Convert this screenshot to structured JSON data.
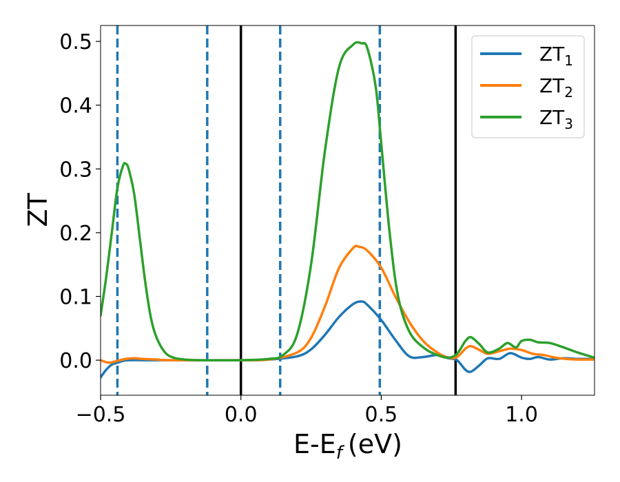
{
  "chart_data": {
    "type": "line",
    "xlabel": "E-E",
    "xlabel_sub": "f",
    "xlabel_unit": "(eV)",
    "ylabel": "ZT",
    "xlim": [
      -0.5,
      1.26
    ],
    "ylim": [
      -0.055,
      0.525
    ],
    "xticks": [
      -0.5,
      0.0,
      0.5,
      1.0
    ],
    "xtick_labels": [
      "−0.5",
      "0.0",
      "0.5",
      "1.0"
    ],
    "yticks": [
      0.0,
      0.1,
      0.2,
      0.3,
      0.4,
      0.5
    ],
    "ytick_labels": [
      "0.0",
      "0.1",
      "0.2",
      "0.3",
      "0.4",
      "0.5"
    ],
    "grid": false,
    "legend_position": "top-right",
    "vlines_solid": [
      0.0,
      0.765
    ],
    "vlines_dashed": [
      -0.44,
      -0.12,
      0.14,
      0.495
    ],
    "colors": {
      "ZT1": "#1f77b4",
      "ZT2": "#ff7f0e",
      "ZT3": "#2ca02c",
      "solid": "#000000",
      "dashed": "#1f77b4"
    },
    "series": [
      {
        "name": "ZT",
        "sub": "1",
        "color": "#1f77b4",
        "x": [
          -0.5,
          -0.48,
          -0.46,
          -0.44,
          -0.42,
          -0.4,
          -0.35,
          -0.3,
          0.0,
          0.1,
          0.2,
          0.25,
          0.3,
          0.35,
          0.4,
          0.43,
          0.45,
          0.5,
          0.55,
          0.6,
          0.65,
          0.7,
          0.74,
          0.77,
          0.8,
          0.82,
          0.85,
          0.88,
          0.92,
          0.96,
          1.0,
          1.03,
          1.06,
          1.1,
          1.15,
          1.2,
          1.26
        ],
        "y": [
          -0.027,
          -0.015,
          -0.007,
          -0.004,
          -0.001,
          0.0,
          0.0,
          0.0,
          0.0,
          0.001,
          0.006,
          0.017,
          0.04,
          0.068,
          0.088,
          0.092,
          0.087,
          0.063,
          0.032,
          0.006,
          0.005,
          0.008,
          0.003,
          0.0,
          -0.015,
          -0.018,
          -0.008,
          0.003,
          0.002,
          0.011,
          0.004,
          0.002,
          0.005,
          0.001,
          0.003,
          0.002,
          0.002
        ]
      },
      {
        "name": "ZT",
        "sub": "2",
        "color": "#ff7f0e",
        "x": [
          -0.5,
          -0.47,
          -0.44,
          -0.41,
          -0.38,
          -0.35,
          -0.3,
          -0.25,
          0.0,
          0.1,
          0.2,
          0.25,
          0.3,
          0.35,
          0.4,
          0.42,
          0.45,
          0.5,
          0.55,
          0.6,
          0.65,
          0.7,
          0.74,
          0.77,
          0.8,
          0.82,
          0.85,
          0.88,
          0.92,
          0.96,
          1.0,
          1.04,
          1.08,
          1.12,
          1.16,
          1.2,
          1.26
        ],
        "y": [
          0.0,
          -0.004,
          -0.001,
          0.002,
          0.003,
          0.002,
          0.001,
          0.0,
          0.0,
          0.001,
          0.012,
          0.035,
          0.085,
          0.145,
          0.176,
          0.178,
          0.172,
          0.145,
          0.1,
          0.06,
          0.03,
          0.012,
          0.004,
          0.005,
          0.018,
          0.022,
          0.016,
          0.01,
          0.014,
          0.018,
          0.016,
          0.01,
          0.008,
          0.004,
          0.002,
          0.001,
          0.001
        ]
      },
      {
        "name": "ZT",
        "sub": "3",
        "color": "#2ca02c",
        "x": [
          -0.5,
          -0.48,
          -0.46,
          -0.44,
          -0.42,
          -0.41,
          -0.4,
          -0.38,
          -0.36,
          -0.34,
          -0.32,
          -0.3,
          -0.27,
          -0.24,
          -0.2,
          -0.15,
          0.0,
          0.1,
          0.15,
          0.2,
          0.25,
          0.3,
          0.35,
          0.4,
          0.43,
          0.45,
          0.48,
          0.5,
          0.53,
          0.56,
          0.6,
          0.65,
          0.7,
          0.74,
          0.77,
          0.8,
          0.82,
          0.85,
          0.88,
          0.92,
          0.95,
          0.98,
          1.0,
          1.03,
          1.06,
          1.1,
          1.15,
          1.2,
          1.26
        ],
        "y": [
          0.07,
          0.13,
          0.2,
          0.27,
          0.305,
          0.308,
          0.3,
          0.26,
          0.19,
          0.12,
          0.065,
          0.035,
          0.012,
          0.004,
          0.001,
          0.0,
          0.0,
          0.002,
          0.008,
          0.04,
          0.15,
          0.33,
          0.46,
          0.495,
          0.497,
          0.49,
          0.43,
          0.34,
          0.2,
          0.1,
          0.045,
          0.02,
          0.008,
          0.004,
          0.01,
          0.03,
          0.036,
          0.025,
          0.012,
          0.018,
          0.027,
          0.02,
          0.03,
          0.032,
          0.028,
          0.027,
          0.02,
          0.012,
          0.004
        ]
      }
    ]
  }
}
